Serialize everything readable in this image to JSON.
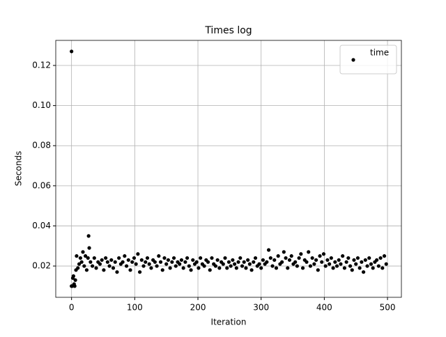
{
  "chart_data": {
    "type": "scatter",
    "title": "Times log",
    "x_label": "Iteration",
    "y_label": "Seconds",
    "x": [
      0,
      0,
      1,
      2,
      3,
      4,
      5,
      6,
      7,
      8,
      10,
      12,
      14,
      16,
      18,
      20,
      22,
      24,
      26,
      27,
      28,
      30,
      33,
      36,
      39,
      42,
      45,
      48,
      51,
      54,
      57,
      60,
      63,
      66,
      69,
      72,
      75,
      78,
      81,
      84,
      87,
      90,
      93,
      96,
      99,
      102,
      105,
      108,
      111,
      114,
      117,
      120,
      123,
      126,
      129,
      132,
      135,
      138,
      141,
      144,
      147,
      150,
      153,
      156,
      159,
      162,
      165,
      168,
      171,
      174,
      177,
      180,
      183,
      186,
      189,
      192,
      195,
      198,
      201,
      204,
      207,
      210,
      213,
      216,
      219,
      222,
      225,
      228,
      231,
      234,
      237,
      240,
      243,
      246,
      249,
      252,
      255,
      258,
      261,
      264,
      267,
      270,
      273,
      276,
      279,
      282,
      285,
      288,
      291,
      294,
      297,
      300,
      303,
      306,
      309,
      312,
      315,
      318,
      321,
      324,
      327,
      330,
      333,
      336,
      339,
      342,
      345,
      348,
      351,
      354,
      357,
      360,
      363,
      366,
      369,
      372,
      375,
      378,
      381,
      384,
      387,
      390,
      393,
      396,
      399,
      402,
      405,
      408,
      411,
      414,
      417,
      420,
      423,
      426,
      429,
      432,
      435,
      438,
      441,
      444,
      447,
      450,
      453,
      456,
      459,
      462,
      465,
      468,
      471,
      474,
      477,
      480,
      483,
      486,
      489,
      492,
      495,
      498
    ],
    "series": [
      {
        "name": "time",
        "color": "#000000",
        "values": [
          0.127,
          0.01,
          0.01,
          0.014,
          0.015,
          0.011,
          0.01,
          0.013,
          0.018,
          0.025,
          0.019,
          0.021,
          0.024,
          0.022,
          0.027,
          0.02,
          0.025,
          0.018,
          0.024,
          0.035,
          0.029,
          0.022,
          0.02,
          0.024,
          0.019,
          0.022,
          0.021,
          0.023,
          0.018,
          0.024,
          0.022,
          0.02,
          0.023,
          0.019,
          0.022,
          0.017,
          0.024,
          0.021,
          0.022,
          0.025,
          0.02,
          0.023,
          0.018,
          0.022,
          0.024,
          0.021,
          0.026,
          0.017,
          0.023,
          0.02,
          0.022,
          0.024,
          0.021,
          0.019,
          0.023,
          0.022,
          0.02,
          0.025,
          0.022,
          0.018,
          0.024,
          0.021,
          0.023,
          0.019,
          0.022,
          0.024,
          0.02,
          0.022,
          0.021,
          0.023,
          0.019,
          0.022,
          0.024,
          0.02,
          0.018,
          0.023,
          0.021,
          0.022,
          0.019,
          0.024,
          0.021,
          0.02,
          0.023,
          0.022,
          0.018,
          0.024,
          0.021,
          0.02,
          0.023,
          0.019,
          0.022,
          0.021,
          0.024,
          0.019,
          0.022,
          0.02,
          0.023,
          0.021,
          0.019,
          0.022,
          0.024,
          0.02,
          0.022,
          0.019,
          0.023,
          0.021,
          0.018,
          0.022,
          0.024,
          0.02,
          0.021,
          0.019,
          0.023,
          0.021,
          0.022,
          0.028,
          0.024,
          0.02,
          0.023,
          0.019,
          0.025,
          0.021,
          0.022,
          0.027,
          0.024,
          0.019,
          0.023,
          0.025,
          0.021,
          0.022,
          0.02,
          0.024,
          0.026,
          0.019,
          0.023,
          0.022,
          0.027,
          0.02,
          0.024,
          0.021,
          0.023,
          0.018,
          0.025,
          0.022,
          0.026,
          0.02,
          0.023,
          0.021,
          0.024,
          0.019,
          0.022,
          0.02,
          0.023,
          0.021,
          0.025,
          0.019,
          0.022,
          0.024,
          0.02,
          0.018,
          0.023,
          0.021,
          0.024,
          0.019,
          0.022,
          0.017,
          0.023,
          0.02,
          0.024,
          0.021,
          0.019,
          0.022,
          0.023,
          0.02,
          0.024,
          0.019,
          0.025,
          0.021
        ]
      }
    ],
    "xlim": [
      -25,
      522
    ],
    "xticks": [
      0,
      100,
      200,
      300,
      400,
      500
    ],
    "ylim": [
      0.0044,
      0.1325
    ],
    "yticks": [
      0.02,
      0.04,
      0.06,
      0.08,
      {
        "value": 0.1,
        "label": "0.10"
      },
      0.12
    ],
    "grid": true,
    "legend": "upper right"
  }
}
